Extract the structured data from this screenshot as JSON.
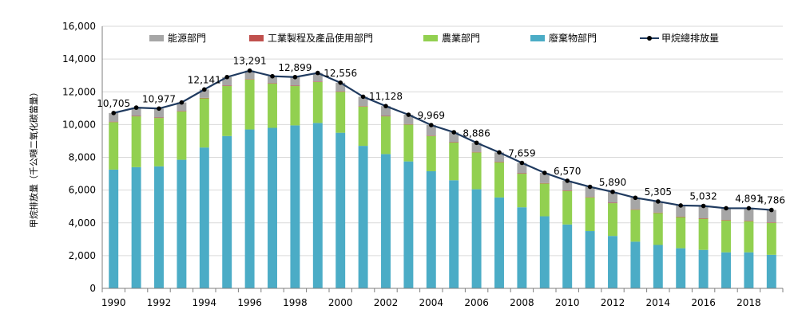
{
  "chart_data": {
    "type": "bar",
    "stacked": true,
    "ylabel": "甲烷排放量（千公噸二氧化碳當量）",
    "ylim": [
      0,
      16000
    ],
    "yticks": [
      "0",
      "2,000",
      "4,000",
      "6,000",
      "8,000",
      "10,000",
      "12,000",
      "14,000",
      "16,000"
    ],
    "ytick_values": [
      0,
      2000,
      4000,
      6000,
      8000,
      10000,
      12000,
      14000,
      16000
    ],
    "x": [
      1990,
      1991,
      1992,
      1993,
      1994,
      1995,
      1996,
      1997,
      1998,
      1999,
      2000,
      2001,
      2002,
      2003,
      2004,
      2005,
      2006,
      2007,
      2008,
      2009,
      2010,
      2011,
      2012,
      2013,
      2014,
      2015,
      2016,
      2017,
      2018,
      2019
    ],
    "xticks": [
      "1990",
      "1992",
      "1994",
      "1996",
      "1998",
      "2000",
      "2002",
      "2004",
      "2006",
      "2008",
      "2010",
      "2012",
      "2014",
      "2016",
      "2018"
    ],
    "grid": "horizontal",
    "legend_placement": "top",
    "series": [
      {
        "name": "廢棄物部門",
        "color": "#4bacc6",
        "values": [
          7250,
          7400,
          7450,
          7850,
          8600,
          9300,
          9700,
          9800,
          9950,
          10100,
          9500,
          8700,
          8200,
          7750,
          7150,
          6600,
          6050,
          5550,
          4950,
          4400,
          3900,
          3500,
          3200,
          2850,
          2650,
          2450,
          2350,
          2200,
          2200,
          2050
        ]
      },
      {
        "name": "農業部門",
        "color": "#92d050",
        "values": [
          2900,
          3100,
          2950,
          2950,
          3000,
          3050,
          3050,
          2700,
          2400,
          2500,
          2500,
          2400,
          2300,
          2250,
          2150,
          2300,
          2250,
          2150,
          2050,
          2000,
          2050,
          2050,
          2000,
          1950,
          1950,
          1900,
          1900,
          1950,
          1900,
          1950
        ]
      },
      {
        "name": "工業製程及產品使用部門",
        "color": "#c0504d",
        "values": [
          30,
          30,
          30,
          30,
          30,
          30,
          30,
          30,
          30,
          30,
          30,
          30,
          30,
          30,
          30,
          30,
          30,
          30,
          30,
          30,
          30,
          30,
          30,
          30,
          30,
          30,
          30,
          30,
          30,
          30
        ]
      },
      {
        "name": "能源部門",
        "color": "#a6a6a6",
        "values": [
          525,
          505,
          547,
          520,
          511,
          520,
          511,
          420,
          519,
          520,
          526,
          570,
          598,
          570,
          639,
          600,
          556,
          570,
          629,
          620,
          590,
          620,
          660,
          700,
          675,
          680,
          752,
          710,
          761,
          756
        ]
      }
    ],
    "total": {
      "name": "甲烷總排放量",
      "color": "#1f3a5f",
      "values": [
        10705,
        11035,
        10977,
        11350,
        12141,
        12900,
        13291,
        12950,
        12899,
        13150,
        12556,
        11700,
        11128,
        10600,
        9969,
        9530,
        8886,
        8300,
        7659,
        7050,
        6570,
        6200,
        5890,
        5530,
        5305,
        5060,
        5032,
        4890,
        4891,
        4786
      ]
    },
    "data_labels": [
      {
        "year": 1990,
        "text": "10,705"
      },
      {
        "year": 1992,
        "text": "10,977"
      },
      {
        "year": 1994,
        "text": "12,141"
      },
      {
        "year": 1996,
        "text": "13,291"
      },
      {
        "year": 1998,
        "text": "12,899"
      },
      {
        "year": 2000,
        "text": "12,556"
      },
      {
        "year": 2002,
        "text": "11,128"
      },
      {
        "year": 2004,
        "text": "9,969"
      },
      {
        "year": 2006,
        "text": "8,886"
      },
      {
        "year": 2008,
        "text": "7,659"
      },
      {
        "year": 2010,
        "text": "6,570"
      },
      {
        "year": 2012,
        "text": "5,890"
      },
      {
        "year": 2014,
        "text": "5,305"
      },
      {
        "year": 2016,
        "text": "5,032"
      },
      {
        "year": 2018,
        "text": "4,891"
      },
      {
        "year": 2019,
        "text": "4,786"
      }
    ],
    "legend": [
      {
        "name": "能源部門",
        "color": "#a6a6a6",
        "kind": "box"
      },
      {
        "name": "工業製程及產品使用部門",
        "color": "#c0504d",
        "kind": "box"
      },
      {
        "name": "農業部門",
        "color": "#92d050",
        "kind": "box"
      },
      {
        "name": "廢棄物部門",
        "color": "#4bacc6",
        "kind": "box"
      },
      {
        "name": "甲烷總排放量",
        "color": "#1f3a5f",
        "kind": "line"
      }
    ]
  }
}
